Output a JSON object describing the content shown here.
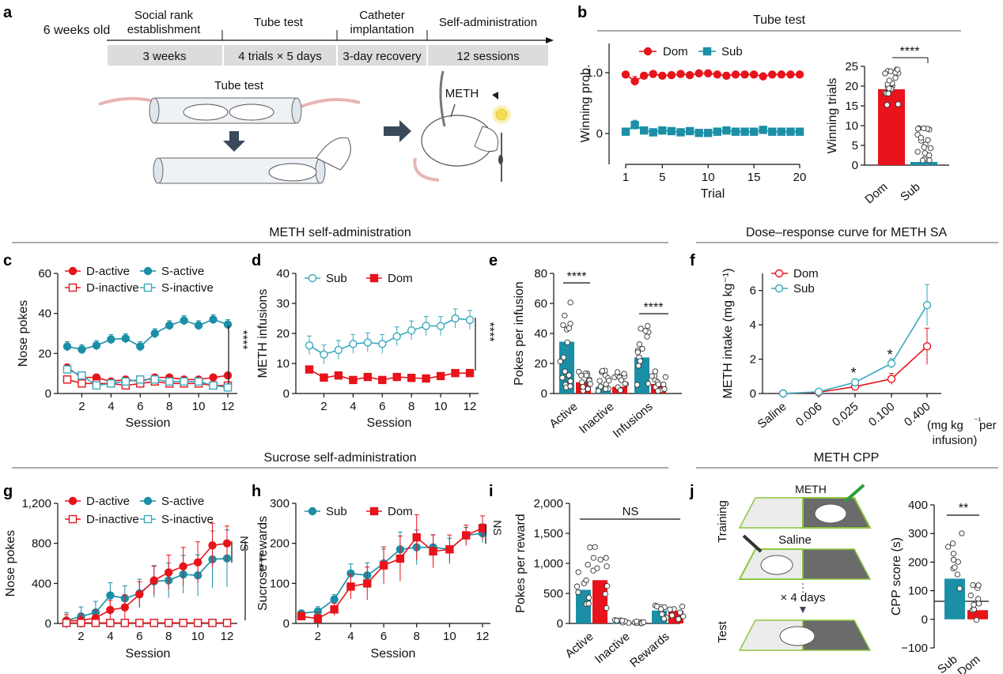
{
  "panels": {
    "a": "a",
    "b": "b",
    "c": "c",
    "d": "d",
    "e": "e",
    "f": "f",
    "g": "g",
    "h": "h",
    "i": "i",
    "j": "j"
  },
  "timeline": {
    "start": "6 weeks old",
    "stages": [
      "Social rank establishment",
      "Tube test",
      "Catheter implantation",
      "Self-administration"
    ],
    "durations": [
      "3 weeks",
      "4 trials × 5 days",
      "3-day recovery",
      "12 sessions"
    ],
    "tube_label": "Tube test",
    "meth_label": "METH"
  },
  "colors": {
    "dom": "#e8131b",
    "sub": "#1a8fa6",
    "sub_light": "#3aa9bd",
    "gray_bar": "#dcdcdc"
  },
  "section_titles": {
    "b": "Tube test",
    "cde": "METH self-administration",
    "f": "Dose–response curve for METH SA",
    "ghi": "Sucrose self-administration",
    "j": "METH CPP"
  },
  "chart_data": [
    {
      "panel": "b-left",
      "type": "line",
      "xlabel": "Trial",
      "ylabel": "Winning prob.",
      "xticks": [
        1,
        5,
        10,
        15,
        20
      ],
      "yticks": [
        "0",
        "1.0"
      ],
      "xlim": [
        1,
        20
      ],
      "ylim": [
        -0.3,
        1.4
      ],
      "x": [
        1,
        2,
        3,
        4,
        5,
        6,
        7,
        8,
        9,
        10,
        11,
        12,
        13,
        14,
        15,
        16,
        17,
        18,
        19,
        20
      ],
      "series": [
        {
          "name": "Dom",
          "values": [
            0.97,
            0.86,
            0.95,
            0.98,
            0.95,
            0.96,
            0.98,
            0.96,
            0.99,
            0.99,
            0.97,
            0.95,
            0.97,
            0.97,
            0.97,
            0.94,
            0.97,
            0.97,
            0.97,
            0.97
          ]
        },
        {
          "name": "Sub",
          "values": [
            0.03,
            0.14,
            0.05,
            0.02,
            0.05,
            0.04,
            0.02,
            0.04,
            0.01,
            0.01,
            0.03,
            0.05,
            0.03,
            0.03,
            0.03,
            0.06,
            0.03,
            0.03,
            0.03,
            0.03
          ]
        }
      ]
    },
    {
      "panel": "b-right",
      "type": "bar",
      "ylabel": "Winning trials",
      "categories": [
        "Dom",
        "Sub"
      ],
      "values": [
        19.2,
        0.8
      ],
      "yticks": [
        "0",
        "5",
        "10",
        "15",
        "20",
        "25"
      ],
      "ylim": [
        0,
        25
      ],
      "sig": "****"
    },
    {
      "panel": "c",
      "type": "line",
      "xlabel": "Session",
      "ylabel": "Nose pokes",
      "xticks": [
        "2",
        "4",
        "6",
        "8",
        "10",
        "12"
      ],
      "yticks": [
        "0",
        "20",
        "40",
        "60"
      ],
      "ylim": [
        0,
        60
      ],
      "x": [
        1,
        2,
        3,
        4,
        5,
        6,
        7,
        8,
        9,
        10,
        11,
        12
      ],
      "series": [
        {
          "name": "D-active",
          "values": [
            13,
            8,
            8,
            6,
            7,
            6,
            8,
            8,
            7,
            7,
            8,
            9
          ]
        },
        {
          "name": "D-inactive",
          "values": [
            7,
            5,
            5,
            5,
            4,
            5,
            6,
            5,
            5,
            5,
            4,
            4
          ]
        },
        {
          "name": "S-active",
          "values": [
            23.5,
            22,
            24,
            27,
            27.5,
            23.5,
            30,
            34,
            36.5,
            34,
            37,
            34.5
          ]
        },
        {
          "name": "S-inactive",
          "values": [
            12,
            9,
            4,
            5,
            6,
            7,
            7,
            6,
            6,
            6,
            4,
            3
          ]
        }
      ],
      "sig": "****"
    },
    {
      "panel": "d",
      "type": "line",
      "xlabel": "Session",
      "ylabel": "METH infusions",
      "xticks": [
        "2",
        "4",
        "6",
        "8",
        "10",
        "12"
      ],
      "yticks": [
        "0",
        "10",
        "20",
        "30",
        "40"
      ],
      "ylim": [
        0,
        40
      ],
      "x": [
        1,
        2,
        3,
        4,
        5,
        6,
        7,
        8,
        9,
        10,
        11,
        12
      ],
      "series": [
        {
          "name": "Sub",
          "values": [
            16,
            13,
            14.5,
            16.5,
            17,
            16.5,
            19,
            21,
            22.5,
            22.5,
            25,
            24.5
          ]
        },
        {
          "name": "Dom",
          "values": [
            8,
            5.3,
            6,
            4.5,
            5.5,
            4.5,
            5.5,
            5.2,
            5,
            5.8,
            6.8,
            6.8
          ]
        }
      ],
      "sig": "****"
    },
    {
      "panel": "e",
      "type": "bar",
      "ylabel": "Pokes per infusion",
      "categories": [
        "Active",
        "Inactive",
        "Infusions"
      ],
      "yticks": [
        "0",
        "20",
        "40",
        "60",
        "80"
      ],
      "ylim": [
        0,
        80
      ],
      "series": [
        {
          "name": "Sub",
          "values": [
            34.5,
            4.5,
            24
          ]
        },
        {
          "name": "Dom",
          "values": [
            7.5,
            4.5,
            6.3
          ]
        }
      ],
      "sig": [
        "****",
        "****"
      ]
    },
    {
      "panel": "f",
      "type": "line",
      "ylabel": "METH intake (mg kg⁻¹)",
      "xlabel_parts": [
        "(mg kg",
        "⁻¹",
        " per infusion)"
      ],
      "categories": [
        "Saline",
        "0.006",
        "0.025",
        "0.100",
        "0.400"
      ],
      "yticks": [
        "0",
        "2",
        "4",
        "6"
      ],
      "ylim": [
        0,
        7
      ],
      "series": [
        {
          "name": "Dom",
          "values": [
            0,
            0.07,
            0.4,
            0.85,
            2.75
          ]
        },
        {
          "name": "Sub",
          "values": [
            0,
            0.1,
            0.65,
            1.75,
            5.15
          ]
        }
      ],
      "sig": [
        "*",
        "*"
      ]
    },
    {
      "panel": "g",
      "type": "line",
      "xlabel": "Session",
      "ylabel": "Nose pokes",
      "xticks": [
        "2",
        "4",
        "6",
        "8",
        "10",
        "12"
      ],
      "yticks": [
        "0",
        "400",
        "800",
        "1,200"
      ],
      "ylim": [
        0,
        1200
      ],
      "x": [
        1,
        2,
        3,
        4,
        5,
        6,
        7,
        8,
        9,
        10,
        11,
        12
      ],
      "series": [
        {
          "name": "D-active",
          "values": [
            25,
            30,
            55,
            135,
            160,
            290,
            430,
            510,
            570,
            610,
            780,
            800
          ]
        },
        {
          "name": "D-inactive",
          "values": [
            5,
            5,
            5,
            5,
            5,
            5,
            5,
            5,
            5,
            5,
            5,
            5
          ]
        },
        {
          "name": "S-active",
          "values": [
            30,
            70,
            110,
            280,
            250,
            300,
            420,
            430,
            490,
            480,
            640,
            650
          ]
        },
        {
          "name": "S-inactive",
          "values": [
            5,
            5,
            5,
            5,
            5,
            5,
            5,
            5,
            5,
            5,
            5,
            5
          ]
        }
      ],
      "sig": [
        "NS",
        "****"
      ]
    },
    {
      "panel": "h",
      "type": "line",
      "xlabel": "Session",
      "ylabel": "Sucrose rewards",
      "xticks": [
        "2",
        "4",
        "6",
        "8",
        "10",
        "12"
      ],
      "yticks": [
        "0",
        "100",
        "200",
        "300"
      ],
      "ylim": [
        0,
        300
      ],
      "x": [
        1,
        2,
        3,
        4,
        5,
        6,
        7,
        8,
        9,
        10,
        11,
        12
      ],
      "series": [
        {
          "name": "Sub",
          "values": [
            25,
            30,
            60,
            125,
            120,
            150,
            185,
            190,
            190,
            185,
            220,
            225
          ]
        },
        {
          "name": "Dom",
          "values": [
            18,
            12,
            35,
            92,
            100,
            145,
            162,
            215,
            180,
            185,
            220,
            238
          ]
        }
      ],
      "sig": "NS"
    },
    {
      "panel": "i",
      "type": "bar",
      "ylabel": "Pokes per reward",
      "categories": [
        "Active",
        "Inactive",
        "Rewards"
      ],
      "yticks": [
        "0",
        "500",
        "1,000",
        "1,500",
        "2,000"
      ],
      "ylim": [
        0,
        2000
      ],
      "series": [
        {
          "name": "Sub",
          "values": [
            560,
            5,
            215
          ]
        },
        {
          "name": "Dom",
          "values": [
            720,
            5,
            210
          ]
        }
      ],
      "sig": "NS"
    },
    {
      "panel": "j-right",
      "type": "bar",
      "ylabel": "CPP score (s)",
      "categories": [
        "Sub",
        "Dom"
      ],
      "values": [
        142,
        32
      ],
      "yticks": [
        "−100",
        "0",
        "100",
        "200",
        "300",
        "400"
      ],
      "ylim": [
        -100,
        400
      ],
      "sig": "**"
    }
  ],
  "cpp": {
    "meth": "METH",
    "saline": "Saline",
    "days": "× 4 days",
    "training": "Training",
    "test": "Test"
  }
}
